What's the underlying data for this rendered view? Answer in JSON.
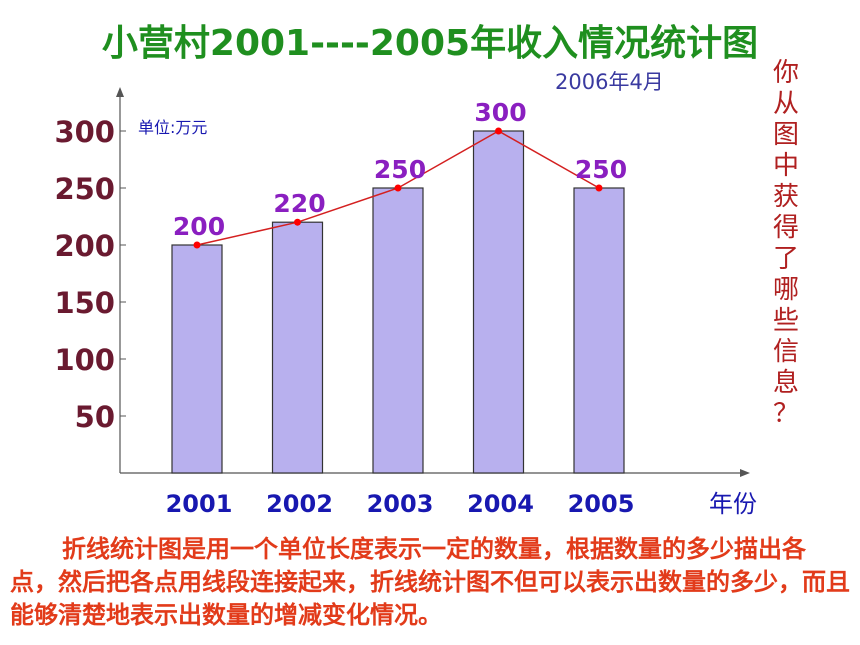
{
  "title": "小营村2001----2005年收入情况统计图",
  "date": "2006年4月",
  "side_question": "你从图中获得了哪些信息？",
  "description": "折线统计图是用一个单位长度表示一定的数量，根据数量的多少描出各点，然后把各点用线段连接起来，折线统计图不但可以表示出数量的多少，而且能够清楚地表示出数量的增减变化情况。",
  "chart_data": {
    "type": "bar",
    "title": "小营村2001----2005年收入情况统计图",
    "unit_label": "单位:万元",
    "xlabel": "年份",
    "ylabel": "",
    "categories": [
      "2001",
      "2002",
      "2003",
      "2004",
      "2005"
    ],
    "values": [
      200,
      220,
      250,
      300,
      250
    ],
    "data_labels": [
      "200",
      "220",
      "250",
      "300",
      "250"
    ],
    "y_ticks": [
      50,
      100,
      150,
      200,
      250,
      300
    ],
    "ylim": [
      0,
      350
    ],
    "overlay_line": true,
    "grid": false,
    "colors": {
      "bar_fill": "#b8b0ee",
      "bar_stroke": "#333333",
      "line": "#d42020",
      "point": "#ff0000",
      "data_label": "#8a1fc0",
      "tick_label": "#6a1a30",
      "category_label": "#1818b0",
      "unit_label": "#1818b0",
      "title": "#1f8f1f",
      "description": "#e23b1a"
    }
  }
}
